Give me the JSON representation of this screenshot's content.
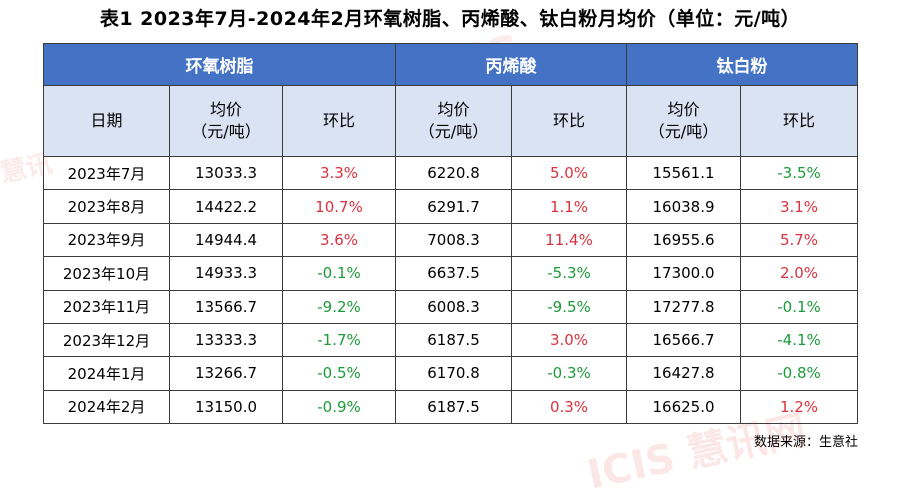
{
  "title": "表1 2023年7月-2024年2月环氧树脂、丙烯酸、钛白粉月均价（单位：元/吨）",
  "watermark": "ICIS慧讯网",
  "groups": [
    "环氧树脂",
    "丙烯酸",
    "钛白粉"
  ],
  "subheaders": {
    "date": "日期",
    "price_line1": "均价",
    "price_line2": "（元/吨）",
    "mom": "环比"
  },
  "rows": [
    {
      "date": "2023年7月",
      "epoxy_price": "13033.3",
      "epoxy_mom": "3.3%",
      "acrylic_price": "6220.8",
      "acrylic_mom": "5.0%",
      "tio2_price": "15561.1",
      "tio2_mom": "-3.5%"
    },
    {
      "date": "2023年8月",
      "epoxy_price": "14422.2",
      "epoxy_mom": "10.7%",
      "acrylic_price": "6291.7",
      "acrylic_mom": "1.1%",
      "tio2_price": "16038.9",
      "tio2_mom": "3.1%"
    },
    {
      "date": "2023年9月",
      "epoxy_price": "14944.4",
      "epoxy_mom": "3.6%",
      "acrylic_price": "7008.3",
      "acrylic_mom": "11.4%",
      "tio2_price": "16955.6",
      "tio2_mom": "5.7%"
    },
    {
      "date": "2023年10月",
      "epoxy_price": "14933.3",
      "epoxy_mom": "-0.1%",
      "acrylic_price": "6637.5",
      "acrylic_mom": "-5.3%",
      "tio2_price": "17300.0",
      "tio2_mom": "2.0%"
    },
    {
      "date": "2023年11月",
      "epoxy_price": "13566.7",
      "epoxy_mom": "-9.2%",
      "acrylic_price": "6008.3",
      "acrylic_mom": "-9.5%",
      "tio2_price": "17277.8",
      "tio2_mom": "-0.1%"
    },
    {
      "date": "2023年12月",
      "epoxy_price": "13333.3",
      "epoxy_mom": "-1.7%",
      "acrylic_price": "6187.5",
      "acrylic_mom": "3.0%",
      "tio2_price": "16566.7",
      "tio2_mom": "-4.1%"
    },
    {
      "date": "2024年1月",
      "epoxy_price": "13266.7",
      "epoxy_mom": "-0.5%",
      "acrylic_price": "6170.8",
      "acrylic_mom": "-0.3%",
      "tio2_price": "16427.8",
      "tio2_mom": "-0.8%"
    },
    {
      "date": "2024年2月",
      "epoxy_price": "13150.0",
      "epoxy_mom": "-0.9%",
      "acrylic_price": "6187.5",
      "acrylic_mom": "0.3%",
      "tio2_price": "16625.0",
      "tio2_mom": "1.2%"
    }
  ],
  "source": "数据来源：生意社",
  "colors": {
    "header_bg": "#4472c4",
    "subheader_bg": "#dae3f3",
    "positive": "#d9333f",
    "negative": "#1c9b3a"
  }
}
